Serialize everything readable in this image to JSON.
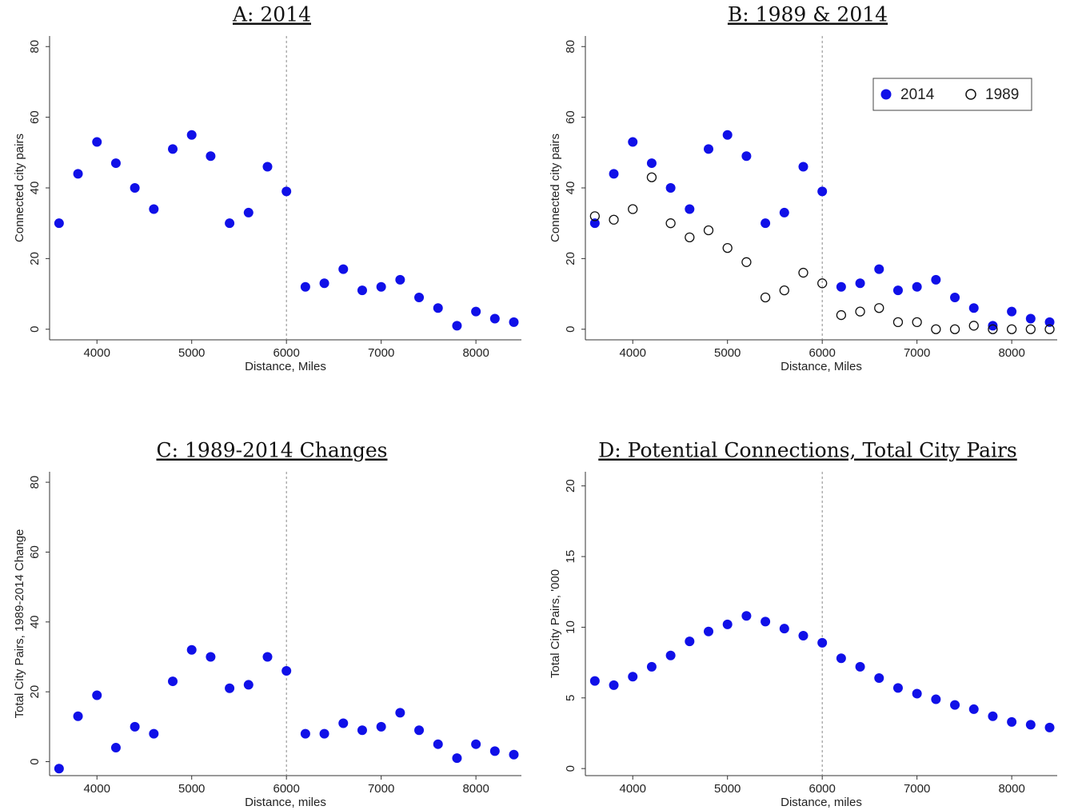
{
  "chart_data": [
    {
      "type": "scatter",
      "title": "A: 2014",
      "x_label": "Distance, Miles",
      "y_label": "Connected city pairs",
      "x": [
        3600,
        3800,
        4000,
        4200,
        4400,
        4600,
        4800,
        5000,
        5200,
        5400,
        5600,
        5800,
        6000,
        6200,
        6400,
        6600,
        6800,
        7000,
        7200,
        7400,
        7600,
        7800,
        8000,
        8200,
        8400
      ],
      "series": [
        {
          "color": "#1010e8",
          "marker": "filled",
          "values": [
            30,
            44,
            53,
            47,
            40,
            34,
            51,
            55,
            49,
            30,
            33,
            46,
            39,
            12,
            13,
            17,
            11,
            12,
            14,
            9,
            6,
            1,
            5,
            3,
            2
          ]
        }
      ],
      "xlim": [
        3500,
        8480
      ],
      "xticks": [
        4000,
        5000,
        6000,
        7000,
        8000
      ],
      "ylim": [
        -3,
        83
      ],
      "yticks": [
        0,
        20,
        40,
        60,
        80
      ],
      "xline": 6000
    },
    {
      "type": "scatter",
      "title": "B: 1989 & 2014",
      "x_label": "Distance, Miles",
      "y_label": "Connected city pairs",
      "x": [
        3600,
        3800,
        4000,
        4200,
        4400,
        4600,
        4800,
        5000,
        5200,
        5400,
        5600,
        5800,
        6000,
        6200,
        6400,
        6600,
        6800,
        7000,
        7200,
        7400,
        7600,
        7800,
        8000,
        8200,
        8400
      ],
      "series": [
        {
          "name": "2014",
          "color": "#1010e8",
          "marker": "filled",
          "values": [
            30,
            44,
            53,
            47,
            40,
            34,
            51,
            55,
            49,
            30,
            33,
            46,
            39,
            12,
            13,
            17,
            11,
            12,
            14,
            9,
            6,
            1,
            5,
            3,
            2
          ]
        },
        {
          "name": "1989",
          "color": "#111111",
          "marker": "open",
          "values": [
            32,
            31,
            34,
            43,
            30,
            26,
            28,
            23,
            19,
            9,
            11,
            16,
            13,
            4,
            5,
            6,
            2,
            2,
            0,
            0,
            1,
            0,
            0,
            0,
            0
          ]
        }
      ],
      "legend": "top-right",
      "xlim": [
        3500,
        8480
      ],
      "xticks": [
        4000,
        5000,
        6000,
        7000,
        8000
      ],
      "ylim": [
        -3,
        83
      ],
      "yticks": [
        0,
        20,
        40,
        60,
        80
      ],
      "xline": 6000
    },
    {
      "type": "scatter",
      "title": "C: 1989-2014 Changes",
      "x_label": "Distance, miles",
      "y_label": "Total City Pairs, 1989-2014 Change",
      "x": [
        3600,
        3800,
        4000,
        4200,
        4400,
        4600,
        4800,
        5000,
        5200,
        5400,
        5600,
        5800,
        6000,
        6200,
        6400,
        6600,
        6800,
        7000,
        7200,
        7400,
        7600,
        7800,
        8000,
        8200,
        8400
      ],
      "series": [
        {
          "color": "#1010e8",
          "marker": "filled",
          "values": [
            -2,
            13,
            19,
            4,
            10,
            8,
            23,
            32,
            30,
            21,
            22,
            30,
            26,
            8,
            8,
            11,
            9,
            10,
            14,
            9,
            5,
            1,
            5,
            3,
            2
          ]
        }
      ],
      "xlim": [
        3500,
        8480
      ],
      "xticks": [
        4000,
        5000,
        6000,
        7000,
        8000
      ],
      "ylim": [
        -4,
        83
      ],
      "yticks": [
        0,
        20,
        40,
        60,
        80
      ],
      "xline": 6000
    },
    {
      "type": "scatter",
      "title": "D: Potential Connections, Total City Pairs",
      "x_label": "Distance, miles",
      "y_label": "Total City Pairs, '000",
      "x": [
        3600,
        3800,
        4000,
        4200,
        4400,
        4600,
        4800,
        5000,
        5200,
        5400,
        5600,
        5800,
        6000,
        6200,
        6400,
        6600,
        6800,
        7000,
        7200,
        7400,
        7600,
        7800,
        8000,
        8200,
        8400
      ],
      "series": [
        {
          "color": "#1010e8",
          "marker": "filled",
          "values": [
            6.2,
            5.9,
            6.5,
            7.2,
            8.0,
            9.0,
            9.7,
            10.2,
            10.8,
            10.4,
            9.9,
            9.4,
            8.9,
            7.8,
            7.2,
            6.4,
            5.7,
            5.3,
            4.9,
            4.5,
            4.2,
            3.7,
            3.3,
            3.1,
            2.9
          ]
        }
      ],
      "xlim": [
        3500,
        8480
      ],
      "xticks": [
        4000,
        5000,
        6000,
        7000,
        8000
      ],
      "ylim": [
        -0.5,
        21
      ],
      "yticks": [
        0,
        5,
        10,
        15,
        20
      ],
      "xline": 6000
    }
  ]
}
